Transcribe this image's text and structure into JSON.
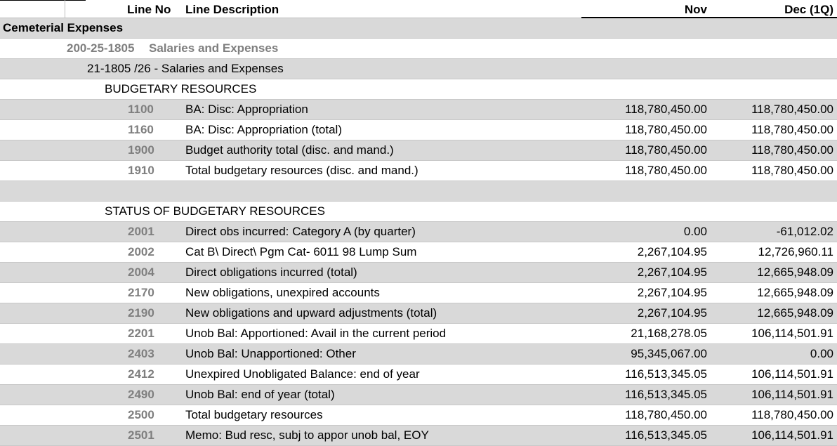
{
  "header": {
    "line_no": "Line No",
    "line_desc": "Line Description",
    "nov": "Nov",
    "dec": "Dec (1Q)"
  },
  "fund": "Cemeterial Expenses",
  "account": {
    "code": "200-25-1805",
    "name": "Salaries and Expenses"
  },
  "tafs": "21-1805 /26 - Salaries and Expenses",
  "sections": [
    {
      "title": "BUDGETARY RESOURCES",
      "lines": [
        {
          "no": "1100",
          "desc": "BA: Disc: Appropriation",
          "nov": "118,780,450.00",
          "dec": "118,780,450.00"
        },
        {
          "no": "1160",
          "desc": "BA: Disc: Appropriation (total)",
          "nov": "118,780,450.00",
          "dec": "118,780,450.00"
        },
        {
          "no": "1900",
          "desc": "Budget authority total (disc. and mand.)",
          "nov": "118,780,450.00",
          "dec": "118,780,450.00"
        },
        {
          "no": "1910",
          "desc": "Total budgetary resources (disc. and mand.)",
          "nov": "118,780,450.00",
          "dec": "118,780,450.00"
        }
      ]
    },
    {
      "title": "STATUS OF BUDGETARY RESOURCES",
      "lines": [
        {
          "no": "2001",
          "desc": "Direct obs incurred: Category A (by quarter)",
          "nov": "0.00",
          "dec": "-61,012.02"
        },
        {
          "no": "2002",
          "desc": "Cat B\\ Direct\\ Pgm Cat- 6011 98 Lump Sum",
          "nov": "2,267,104.95",
          "dec": "12,726,960.11"
        },
        {
          "no": "2004",
          "desc": "Direct obligations incurred (total)",
          "nov": "2,267,104.95",
          "dec": "12,665,948.09"
        },
        {
          "no": "2170",
          "desc": "New obligations, unexpired accounts",
          "nov": "2,267,104.95",
          "dec": "12,665,948.09"
        },
        {
          "no": "2190",
          "desc": "New obligations and upward adjustments (total)",
          "nov": "2,267,104.95",
          "dec": "12,665,948.09"
        },
        {
          "no": "2201",
          "desc": "Unob Bal: Apportioned: Avail in the current period",
          "nov": "21,168,278.05",
          "dec": "106,114,501.91"
        },
        {
          "no": "2403",
          "desc": "Unob Bal: Unapportioned: Other",
          "nov": "95,345,067.00",
          "dec": "0.00"
        },
        {
          "no": "2412",
          "desc": "Unexpired Unobligated Balance: end of year",
          "nov": "116,513,345.05",
          "dec": "106,114,501.91"
        },
        {
          "no": "2490",
          "desc": "Unob Bal: end of year (total)",
          "nov": "116,513,345.05",
          "dec": "106,114,501.91"
        },
        {
          "no": "2500",
          "desc": "Total budgetary resources",
          "nov": "118,780,450.00",
          "dec": "118,780,450.00"
        },
        {
          "no": "2501",
          "desc": "Memo: Bud resc, subj to appor unob bal, EOY",
          "nov": "116,513,345.05",
          "dec": "106,114,501.91"
        }
      ]
    }
  ]
}
